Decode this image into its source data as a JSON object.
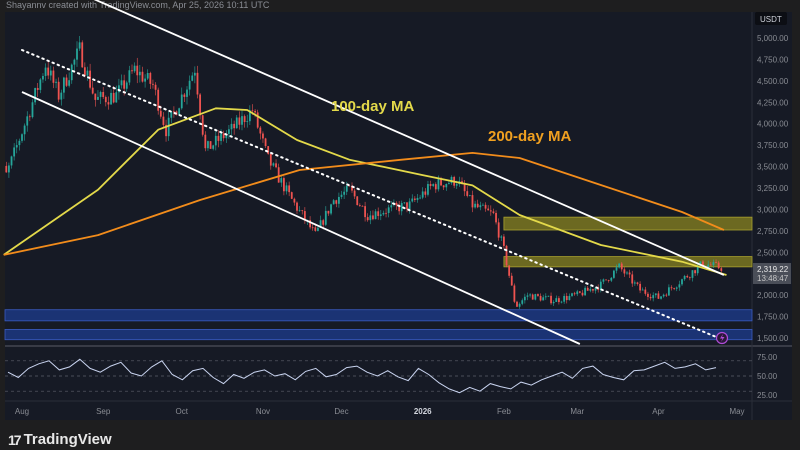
{
  "header": {
    "text": "Shayannv created with TradingView.com, Apr 25, 2026 10:11 UTC"
  },
  "footer": {
    "logo_mark": "17",
    "logo_text": "TradingView"
  },
  "colors": {
    "background": "#161a25",
    "up": "#26a69a",
    "down": "#ef5350",
    "ma100": "#e3d94a",
    "ma200": "#f28c1b",
    "yellow_zone": "#8a8420",
    "blue_zone": "#1d3c8f"
  },
  "chart_data": {
    "type": "candlestick",
    "title": "",
    "currency_label": "USDT",
    "last_price_label": "2,319.22",
    "countdown_label": "13:48:47",
    "ylim": [
      1400,
      5150
    ],
    "y_ticks": [
      "5,000.00",
      "4,750.00",
      "4,500.00",
      "4,250.00",
      "4,000.00",
      "3,750.00",
      "3,500.00",
      "3,250.00",
      "3,000.00",
      "2,750.00",
      "2,500.00",
      "2,250.00",
      "2,000.00",
      "1,750.00",
      "1,500.00"
    ],
    "y_tick_values": [
      5000,
      4750,
      4500,
      4250,
      4000,
      3750,
      3500,
      3250,
      3000,
      2750,
      2500,
      2250,
      2000,
      1750,
      1500
    ],
    "x_ticks": [
      {
        "label": "Aug",
        "date": "2025-08-01",
        "bold": false
      },
      {
        "label": "Sep",
        "date": "2025-09-01",
        "bold": false
      },
      {
        "label": "Oct",
        "date": "2025-10-01",
        "bold": false
      },
      {
        "label": "Nov",
        "date": "2025-11-01",
        "bold": false
      },
      {
        "label": "Dec",
        "date": "2025-12-01",
        "bold": false
      },
      {
        "label": "2026",
        "date": "2026-01-01",
        "bold": true
      },
      {
        "label": "Feb",
        "date": "2026-02-01",
        "bold": false
      },
      {
        "label": "Mar",
        "date": "2026-03-01",
        "bold": false
      },
      {
        "label": "Apr",
        "date": "2026-04-01",
        "bold": false
      },
      {
        "label": "May",
        "date": "2026-05-01",
        "bold": false
      }
    ],
    "price_path": [
      [
        "2025-07-20",
        3750
      ],
      [
        "2025-07-26",
        3400
      ],
      [
        "2025-08-04",
        4160
      ],
      [
        "2025-08-10",
        4690
      ],
      [
        "2025-08-15",
        4330
      ],
      [
        "2025-08-23",
        4860
      ],
      [
        "2025-08-29",
        4280
      ],
      [
        "2025-09-06",
        4330
      ],
      [
        "2025-09-13",
        4630
      ],
      [
        "2025-09-20",
        4450
      ],
      [
        "2025-09-25",
        3930
      ],
      [
        "2025-10-03",
        4450
      ],
      [
        "2025-10-06",
        4650
      ],
      [
        "2025-10-10",
        3690
      ],
      [
        "2025-10-20",
        3930
      ],
      [
        "2025-10-28",
        4160
      ],
      [
        "2025-11-03",
        3580
      ],
      [
        "2025-11-12",
        3110
      ],
      [
        "2025-11-21",
        2700
      ],
      [
        "2025-11-28",
        3110
      ],
      [
        "2025-12-04",
        3230
      ],
      [
        "2025-12-11",
        2935
      ],
      [
        "2025-12-19",
        3000
      ],
      [
        "2025-12-27",
        3050
      ],
      [
        "2026-01-05",
        3285
      ],
      [
        "2026-01-14",
        3340
      ],
      [
        "2026-01-20",
        3050
      ],
      [
        "2026-01-28",
        2935
      ],
      [
        "2026-02-01",
        2525
      ],
      [
        "2026-02-05",
        1940
      ],
      [
        "2026-02-06",
        1880
      ],
      [
        "2026-02-10",
        2000
      ],
      [
        "2026-02-20",
        1940
      ],
      [
        "2026-03-01",
        2000
      ],
      [
        "2026-03-10",
        2120
      ],
      [
        "2026-03-17",
        2330
      ],
      [
        "2026-03-25",
        2060
      ],
      [
        "2026-04-01",
        1970
      ],
      [
        "2026-04-10",
        2180
      ],
      [
        "2026-04-18",
        2370
      ],
      [
        "2026-04-25",
        2319
      ]
    ],
    "series": [
      {
        "name": "100-day MA",
        "label": "100-day MA",
        "color_key": "ma100",
        "points": [
          [
            "2025-07-25",
            2470
          ],
          [
            "2025-08-30",
            3230
          ],
          [
            "2025-09-22",
            3930
          ],
          [
            "2025-10-14",
            4180
          ],
          [
            "2025-10-26",
            4160
          ],
          [
            "2025-11-14",
            3810
          ],
          [
            "2025-12-04",
            3580
          ],
          [
            "2026-01-01",
            3400
          ],
          [
            "2026-01-20",
            3280
          ],
          [
            "2026-02-07",
            2935
          ],
          [
            "2026-03-10",
            2585
          ],
          [
            "2026-04-10",
            2390
          ],
          [
            "2026-04-27",
            2235
          ]
        ]
      },
      {
        "name": "200-day MA",
        "label": "200-day MA",
        "color_key": "ma200",
        "points": [
          [
            "2025-07-25",
            2470
          ],
          [
            "2025-08-30",
            2700
          ],
          [
            "2025-10-08",
            3110
          ],
          [
            "2025-11-15",
            3460
          ],
          [
            "2025-12-24",
            3580
          ],
          [
            "2026-01-20",
            3660
          ],
          [
            "2026-02-07",
            3600
          ],
          [
            "2026-03-10",
            3285
          ],
          [
            "2026-04-10",
            2970
          ],
          [
            "2026-04-26",
            2760
          ]
        ]
      }
    ],
    "trendlines": [
      {
        "name": "channel-upper",
        "style": "solid",
        "from": [
          "2025-08-25",
          5500
        ],
        "to": [
          "2026-04-26",
          2235
        ]
      },
      {
        "name": "channel-lower",
        "style": "solid",
        "from": [
          "2025-08-01",
          4370
        ],
        "to": [
          "2026-03-02",
          1430
        ]
      },
      {
        "name": "dotted-trendline",
        "style": "dotted",
        "from": [
          "2025-08-01",
          4860
        ],
        "to": [
          "2026-04-24",
          1500
        ]
      }
    ],
    "zones": [
      {
        "name": "yellow-zone-upper",
        "color_key": "yellow_zone",
        "from_date": "2026-02-01",
        "low": 2760,
        "high": 2910
      },
      {
        "name": "yellow-zone-lower",
        "color_key": "yellow_zone",
        "from_date": "2026-02-01",
        "low": 2330,
        "high": 2450
      },
      {
        "name": "blue-zone-upper",
        "color_key": "blue_zone",
        "from_date": "2025-07-20",
        "low": 1700,
        "high": 1830
      },
      {
        "name": "blue-zone-lower",
        "color_key": "blue_zone",
        "from_date": "2025-07-20",
        "low": 1480,
        "high": 1600
      }
    ],
    "oscillator": {
      "y_ticks": [
        "75.00",
        "50.00",
        "25.00"
      ],
      "y_tick_values": [
        75,
        50,
        25
      ],
      "ylim": [
        15,
        85
      ],
      "values": [
        55,
        48,
        60,
        66,
        70,
        58,
        62,
        72,
        60,
        55,
        63,
        68,
        54,
        50,
        62,
        70,
        52,
        45,
        57,
        60,
        48,
        40,
        52,
        47,
        55,
        58,
        50,
        53,
        45,
        56,
        60,
        49,
        52,
        61,
        63,
        55,
        50,
        57,
        49,
        44,
        60,
        52,
        41,
        33,
        28,
        35,
        30,
        40,
        36,
        33,
        42,
        38,
        45,
        50,
        55,
        47,
        60,
        63,
        52,
        48,
        45,
        57,
        58,
        63,
        68,
        60,
        62,
        66,
        58,
        61
      ]
    }
  }
}
